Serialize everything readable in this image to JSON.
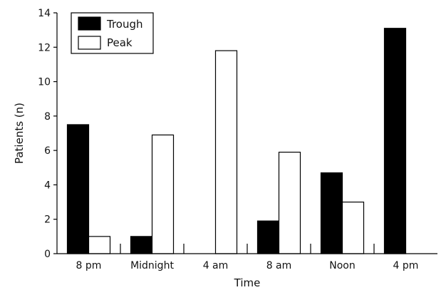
{
  "chart_data": {
    "type": "bar",
    "categories": [
      "8 pm",
      "Midnight",
      "4 am",
      "8 am",
      "Noon",
      "4 pm"
    ],
    "series": [
      {
        "name": "Trough",
        "values": [
          7.5,
          1.0,
          0.0,
          1.9,
          4.7,
          13.1
        ],
        "color": "#000000"
      },
      {
        "name": "Peak",
        "values": [
          1.0,
          6.9,
          11.8,
          5.9,
          3.0,
          0.0
        ],
        "color": "#ffffff"
      }
    ],
    "xlabel": "Time",
    "ylabel": "Patients (n)",
    "ylim": [
      0,
      14
    ],
    "yticks": [
      0,
      2,
      4,
      6,
      8,
      10,
      12,
      14
    ],
    "grid": false,
    "legend": "top-left"
  }
}
